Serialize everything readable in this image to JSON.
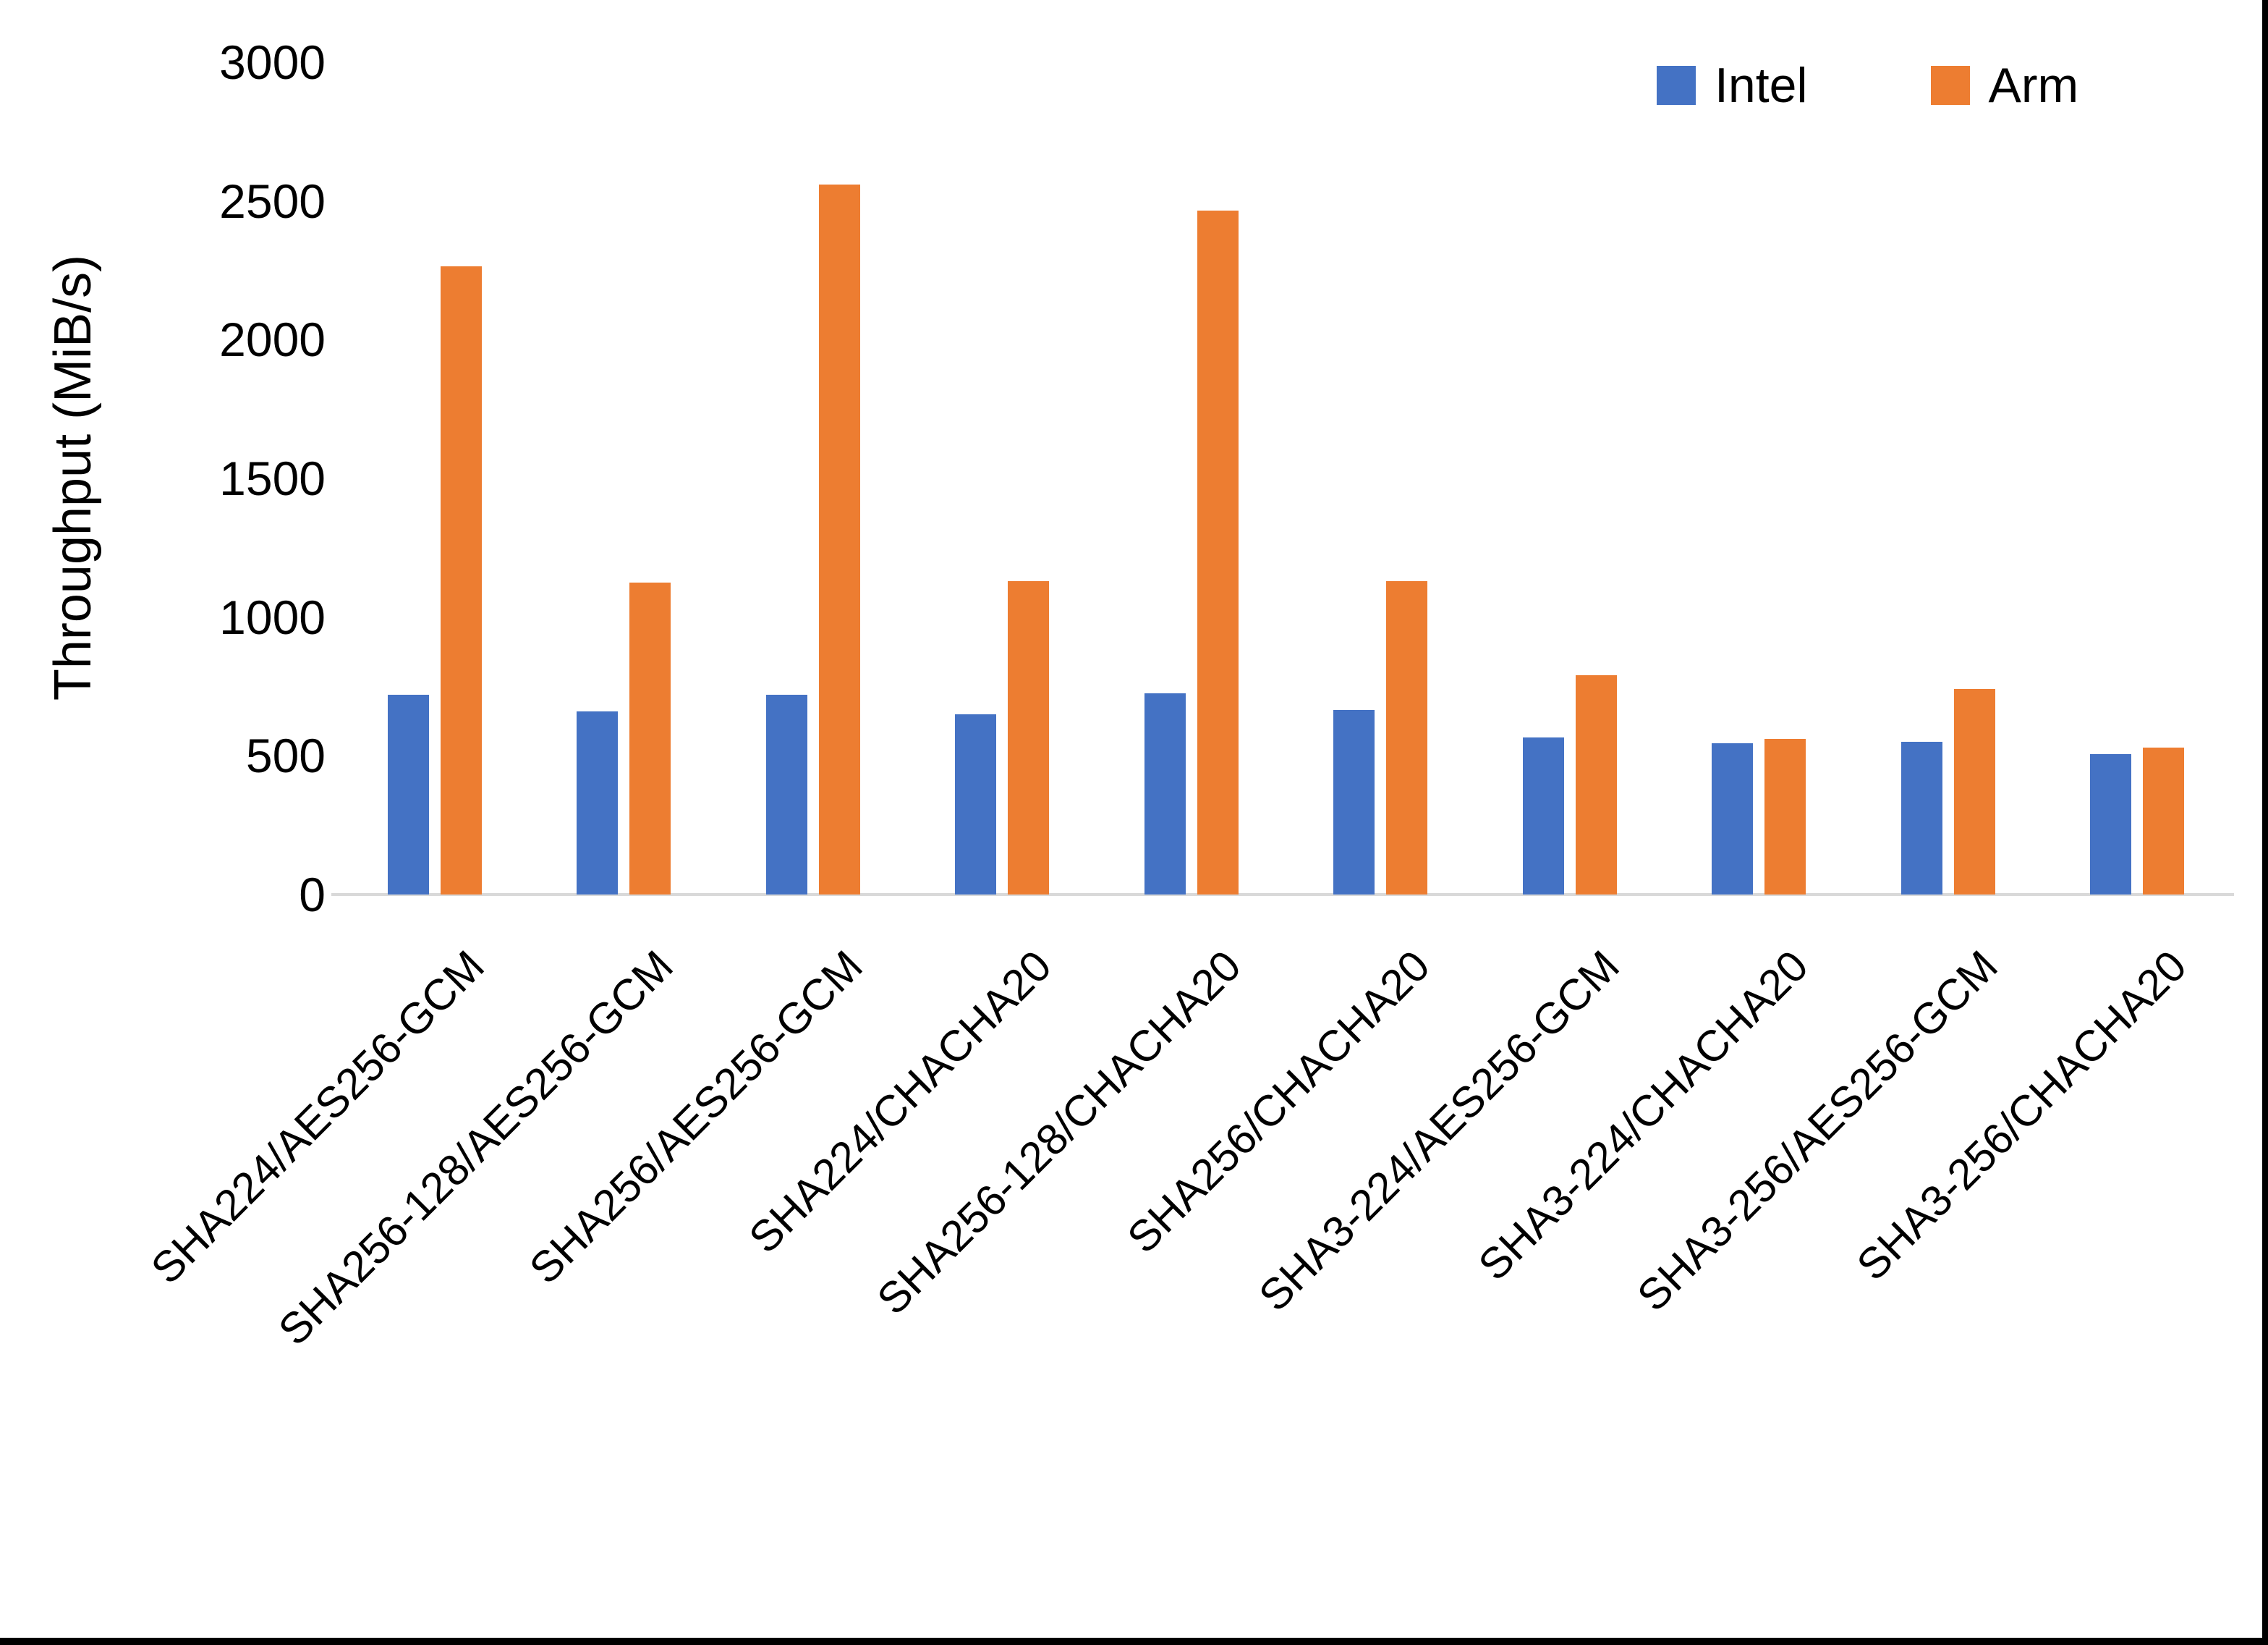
{
  "figure": {
    "background": "#ffffff",
    "right_band_color": "#000000",
    "bottom_band_color": "#000000"
  },
  "axis": {
    "baseline_color": "#d9d9d9",
    "text_color": "#000000"
  },
  "legend": {
    "items": [
      {
        "label": "Intel",
        "color": "#4472c4"
      },
      {
        "label": "Arm",
        "color": "#ed7d31"
      }
    ]
  },
  "chart_data": {
    "type": "bar",
    "title": "",
    "xlabel": "",
    "ylabel": "Throughput (MiB/s)",
    "ylim": [
      0,
      3000
    ],
    "y_ticks": [
      0,
      500,
      1000,
      1500,
      2000,
      2500,
      3000
    ],
    "grid": false,
    "legend_position": "top-right",
    "categories": [
      "SHA224/AES256-GCM",
      "SHA256-128/AES256-GCM",
      "SHA256/AES256-GCM",
      "SHA224/CHACHA20",
      "SHA256-128/CHACHA20",
      "SHA256/CHACHA20",
      "SHA3-224/AES256-GCM",
      "SHA3-224/CHACHA20",
      "SHA3-256/AES256-GCM",
      "SHA3-256/CHACHA20"
    ],
    "series": [
      {
        "name": "Intel",
        "color": "#4472c4",
        "values": [
          720,
          660,
          720,
          650,
          725,
          665,
          565,
          545,
          550,
          505
        ]
      },
      {
        "name": "Arm",
        "color": "#ed7d31",
        "values": [
          2265,
          1125,
          2560,
          1130,
          2465,
          1130,
          790,
          560,
          740,
          530
        ]
      }
    ]
  }
}
